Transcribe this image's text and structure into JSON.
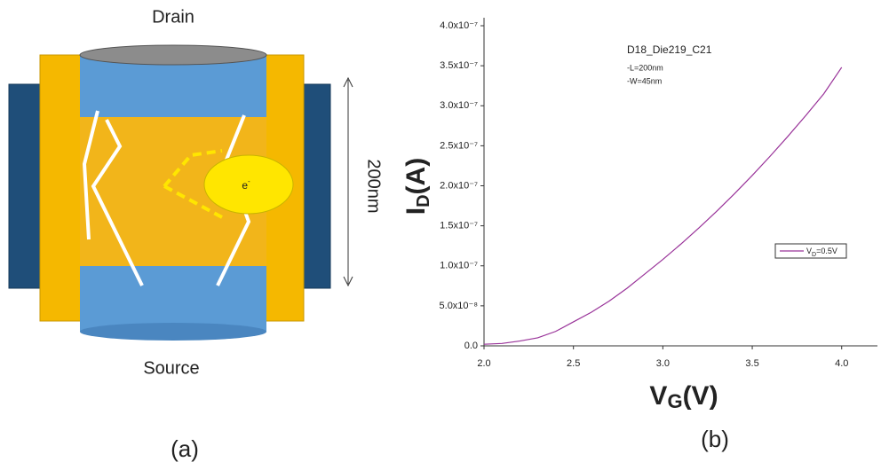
{
  "diagram": {
    "top_label": "Drain",
    "bottom_label": "Source",
    "length_label": "200nm",
    "electron": {
      "main": "e",
      "sup": "-"
    },
    "panel_label": "(a)"
  },
  "chart_data": {
    "type": "line",
    "panel_label": "(b)",
    "annotations": [
      "D18_Die219_C21",
      "-L=200nm",
      "-W=45nm"
    ],
    "x_label": {
      "main": "V",
      "sub": "G",
      "rest": "(V)"
    },
    "y_label": {
      "main": "I",
      "sub": "D",
      "rest": "(A)"
    },
    "legend": {
      "main": "V",
      "sub": "D",
      "rest": "=0.5V"
    },
    "x": [
      2.0,
      2.1,
      2.2,
      2.3,
      2.4,
      2.5,
      2.6,
      2.7,
      2.8,
      2.9,
      3.0,
      3.1,
      3.2,
      3.3,
      3.4,
      3.5,
      3.6,
      3.7,
      3.8,
      3.9,
      4.0
    ],
    "series": [
      {
        "color": "#993399",
        "values": [
          2e-09,
          3e-09,
          6e-09,
          1e-08,
          1.8e-08,
          3e-08,
          4.2e-08,
          5.6e-08,
          7.2e-08,
          9e-08,
          1.08e-07,
          1.27e-07,
          1.47e-07,
          1.68e-07,
          1.9e-07,
          2.13e-07,
          2.37e-07,
          2.62e-07,
          2.88e-07,
          3.15e-07,
          3.48e-07
        ]
      }
    ],
    "xlim": [
      2.0,
      4.2
    ],
    "ylim": [
      0,
      4.1e-07
    ],
    "xticks": [
      {
        "value": 2.0,
        "label": "2.0"
      },
      {
        "value": 2.5,
        "label": "2.5"
      },
      {
        "value": 3.0,
        "label": "3.0"
      },
      {
        "value": 3.5,
        "label": "3.5"
      },
      {
        "value": 4.0,
        "label": "4.0"
      }
    ],
    "yticks": [
      {
        "value": 0,
        "label": "0.0"
      },
      {
        "value": 5e-08,
        "label": "5.0x10⁻⁸"
      },
      {
        "value": 1e-07,
        "label": "1.0x10⁻⁷"
      },
      {
        "value": 1.5e-07,
        "label": "1.5x10⁻⁷"
      },
      {
        "value": 2e-07,
        "label": "2.0x10⁻⁷"
      },
      {
        "value": 2.5e-07,
        "label": "2.5x10⁻⁷"
      },
      {
        "value": 3e-07,
        "label": "3.0x10⁻⁷"
      },
      {
        "value": 3.5e-07,
        "label": "3.5x10⁻⁷"
      },
      {
        "value": 4e-07,
        "label": "4.0x10⁻⁷"
      }
    ]
  }
}
